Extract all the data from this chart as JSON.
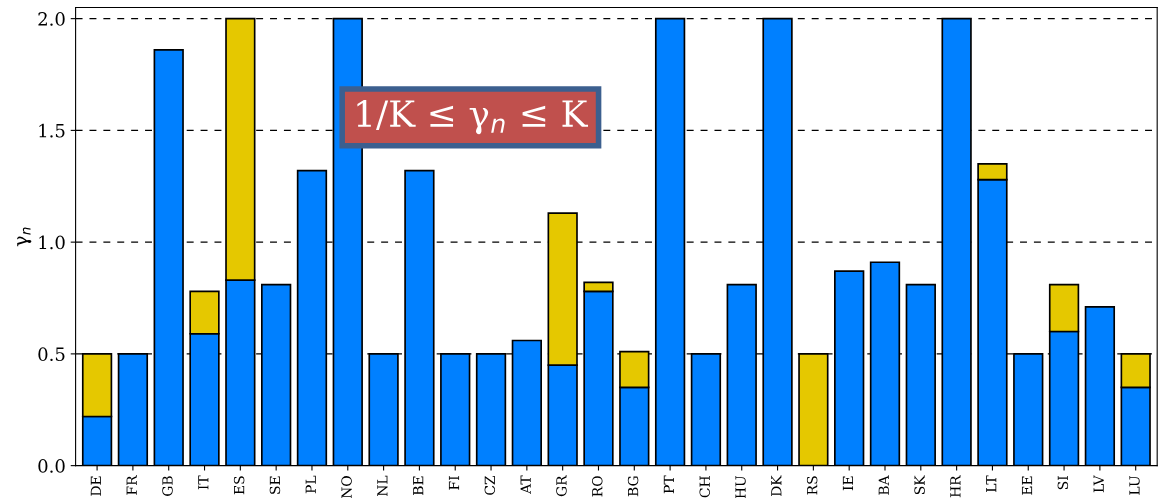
{
  "chart_data": {
    "type": "bar",
    "stacked": true,
    "ylabel": "γ$_{n}$",
    "categories": [
      "DE",
      "FR",
      "GB",
      "IT",
      "ES",
      "SE",
      "PL",
      "NO",
      "NL",
      "BE",
      "FI",
      "CZ",
      "AT",
      "GR",
      "RO",
      "BG",
      "PT",
      "CH",
      "HU",
      "DK",
      "RS",
      "IE",
      "BA",
      "SK",
      "HR",
      "LT",
      "EE",
      "SI",
      "LV",
      "LU"
    ],
    "series": [
      {
        "color": "#0080ff",
        "values": [
          0.22,
          0.5,
          1.86,
          0.59,
          0.83,
          0.81,
          1.32,
          2.0,
          0.5,
          1.32,
          0.5,
          0.5,
          0.56,
          0.45,
          0.78,
          0.35,
          2.0,
          0.5,
          0.81,
          2.0,
          null,
          0.87,
          0.91,
          0.81,
          2.0,
          1.28,
          0.5,
          0.6,
          0.71,
          0.35
        ]
      },
      {
        "color": "#e5c800",
        "values": [
          0.28,
          null,
          null,
          0.19,
          1.17,
          null,
          null,
          null,
          null,
          null,
          null,
          null,
          null,
          0.68,
          0.04,
          0.16,
          null,
          null,
          null,
          null,
          0.5,
          null,
          null,
          null,
          null,
          0.07,
          null,
          0.21,
          null,
          0.15
        ]
      }
    ],
    "ylim": [
      0,
      2.05
    ],
    "yticks": [
      {
        "value": 0,
        "label": "0.0"
      },
      {
        "value": 0.5,
        "label": "0.5"
      },
      {
        "value": 1.0,
        "label": "1.0"
      },
      {
        "value": 1.5,
        "label": "1.5"
      },
      {
        "value": 2.0,
        "label": "2.0"
      }
    ],
    "grid": "y",
    "annotations": [
      "1/K ≤ γ$_{n}$ ≤ K"
    ]
  }
}
